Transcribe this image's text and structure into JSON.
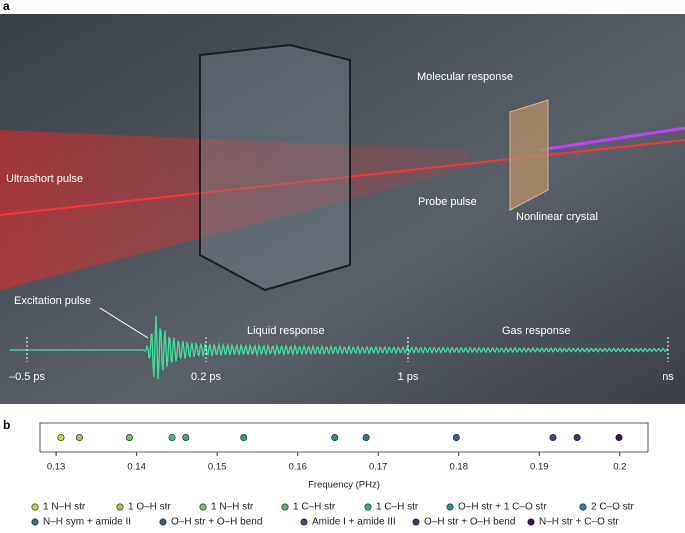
{
  "panel_a": {
    "label": "a",
    "molecular_response": "Molecular response",
    "ultrashort_pulse": "Ultrashort pulse",
    "probe_pulse": "Probe pulse",
    "nonlinear_crystal": "Nonlinear crystal",
    "excitation_pulse": "Excitation pulse",
    "liquid_response": "Liquid response",
    "gas_response": "Gas response",
    "times": [
      "–0.5 ps",
      "0.2 ps",
      "1 ps",
      "ns"
    ]
  },
  "chart_data": {
    "type": "scatter",
    "label": "b",
    "xlabel": "Frequency (PHz)",
    "xlim": [
      0.128,
      0.2035
    ],
    "xticks": [
      0.13,
      0.14,
      0.15,
      0.16,
      0.17,
      0.18,
      0.19,
      0.2
    ],
    "series": [
      {
        "name": "1 N–H str",
        "color": "#c5d93b",
        "x": 0.1306
      },
      {
        "name": "1 O–H str",
        "color": "#9dce4b",
        "x": 0.1329
      },
      {
        "name": "1 N–H str",
        "color": "#74c35f",
        "x": 0.1391
      },
      {
        "name": "1 C–H str",
        "color": "#4fb678",
        "x": 0.1444
      },
      {
        "name": "1 C–H str",
        "color": "#3aa985",
        "x": 0.1461
      },
      {
        "name": "O–H str + 1 C–O str",
        "color": "#2b998b",
        "x": 0.1533
      },
      {
        "name": "2 C–O str",
        "color": "#2d878d",
        "x": 0.1646
      },
      {
        "name": "N–H sym + amide II",
        "color": "#34728c",
        "x": 0.1685
      },
      {
        "name": "O–H str + O–H bend",
        "color": "#3e5a8a",
        "x": 0.1797
      },
      {
        "name": "Amide I + amide III",
        "color": "#474486",
        "x": 0.1917
      },
      {
        "name": "O–H str + O–H bend",
        "color": "#4a2c78",
        "x": 0.1947
      },
      {
        "name": "N–H str + C–O str",
        "color": "#3e0f5c",
        "x": 0.1999
      }
    ]
  }
}
